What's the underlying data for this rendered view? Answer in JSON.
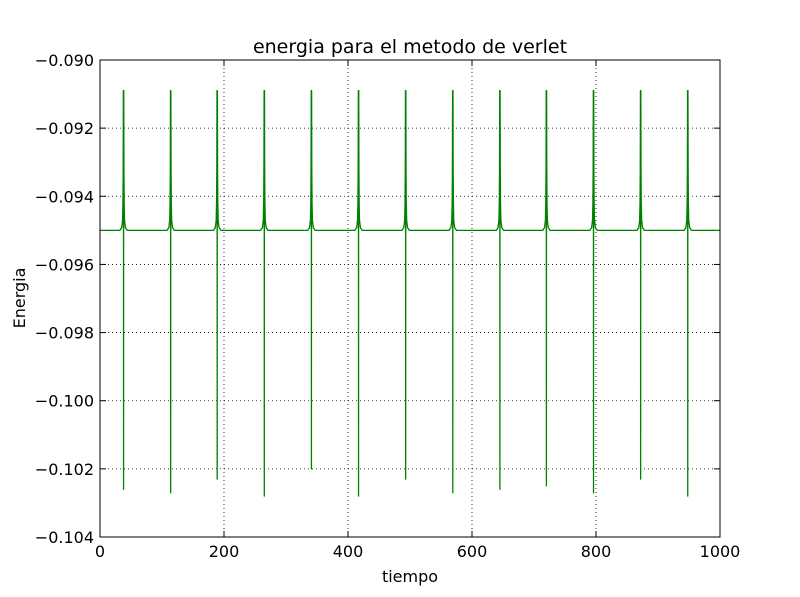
{
  "chart_data": {
    "type": "line",
    "title": "energia para el metodo de verlet",
    "xlabel": "tiempo",
    "ylabel": "Energia",
    "xlim": [
      0,
      1000
    ],
    "ylim": [
      -0.104,
      -0.09
    ],
    "x_ticks": [
      0,
      200,
      400,
      600,
      800,
      1000
    ],
    "x_tick_labels": [
      "0",
      "200",
      "400",
      "600",
      "800",
      "1000"
    ],
    "y_ticks": [
      -0.09,
      -0.092,
      -0.094,
      -0.096,
      -0.098,
      -0.1,
      -0.102,
      -0.104
    ],
    "y_tick_labels": [
      "−0.090",
      "−0.092",
      "−0.094",
      "−0.096",
      "−0.098",
      "−0.100",
      "−0.102",
      "−0.104"
    ],
    "grid": true,
    "series": [
      {
        "color": "#008000",
        "baseline": -0.095,
        "spike_times": [
          38,
          114,
          189,
          265,
          341,
          417,
          493,
          569,
          645,
          720,
          796,
          872,
          948
        ],
        "spike_max": [
          -0.0909,
          -0.0909,
          -0.0909,
          -0.0909,
          -0.0909,
          -0.0909,
          -0.0909,
          -0.0909,
          -0.0909,
          -0.0909,
          -0.0909,
          -0.0909,
          -0.0909
        ],
        "spike_min": [
          -0.1026,
          -0.1027,
          -0.1023,
          -0.1028,
          -0.102,
          -0.1028,
          -0.1023,
          -0.1027,
          -0.1026,
          -0.1025,
          -0.1027,
          -0.1023,
          -0.1028
        ]
      }
    ]
  }
}
